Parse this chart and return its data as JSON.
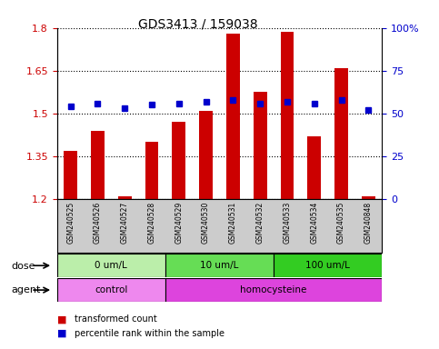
{
  "title": "GDS3413 / 159038",
  "samples": [
    "GSM240525",
    "GSM240526",
    "GSM240527",
    "GSM240528",
    "GSM240529",
    "GSM240530",
    "GSM240531",
    "GSM240532",
    "GSM240533",
    "GSM240534",
    "GSM240535",
    "GSM240848"
  ],
  "transformed_count": [
    1.37,
    1.44,
    1.21,
    1.4,
    1.47,
    1.51,
    1.78,
    1.575,
    1.785,
    1.42,
    1.66,
    1.21
  ],
  "percentile_rank": [
    54,
    56,
    53,
    55,
    56,
    57,
    58,
    56,
    57,
    56,
    58,
    52
  ],
  "ymin": 1.2,
  "ymax": 1.8,
  "yticks": [
    1.2,
    1.35,
    1.5,
    1.65,
    1.8
  ],
  "ytick_labels": [
    "1.2",
    "1.35",
    "1.5",
    "1.65",
    "1.8"
  ],
  "right_yticks": [
    0,
    25,
    50,
    75,
    100
  ],
  "right_ytick_labels": [
    "0",
    "25",
    "50",
    "75",
    "100%"
  ],
  "bar_color": "#cc0000",
  "dot_color": "#0000cc",
  "bar_bottom": 1.2,
  "dose_groups": [
    {
      "label": "0 um/L",
      "start": 0,
      "end": 4,
      "color": "#bbeeaa"
    },
    {
      "label": "10 um/L",
      "start": 4,
      "end": 8,
      "color": "#66dd55"
    },
    {
      "label": "100 um/L",
      "start": 8,
      "end": 12,
      "color": "#33cc22"
    }
  ],
  "agent_groups": [
    {
      "label": "control",
      "start": 0,
      "end": 4,
      "color": "#ee88ee"
    },
    {
      "label": "homocysteine",
      "start": 4,
      "end": 12,
      "color": "#dd44dd"
    }
  ],
  "dose_label": "dose",
  "agent_label": "agent",
  "legend_bar_label": "transformed count",
  "legend_dot_label": "percentile rank within the sample",
  "axis_label_color_left": "#cc0000",
  "axis_label_color_right": "#0000cc",
  "background_color": "#ffffff",
  "tick_area_bg": "#cccccc"
}
